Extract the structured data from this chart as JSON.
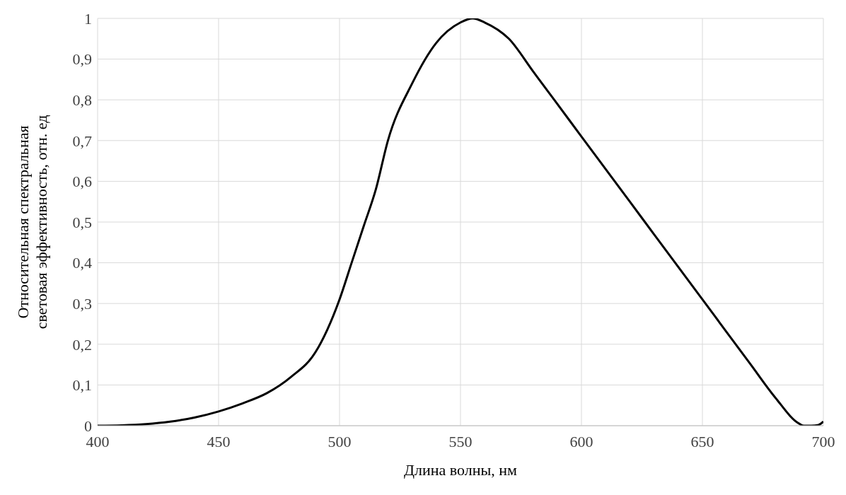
{
  "chart_data": {
    "type": "line",
    "xlabel": "Длина волны, нм",
    "ylabel": "Относительная спектральная световая эффективность, отн. ед",
    "x": [
      400,
      410,
      420,
      430,
      440,
      450,
      460,
      470,
      480,
      490,
      500,
      505,
      510,
      515,
      520,
      530,
      540,
      550,
      555,
      560,
      570,
      580,
      590,
      600,
      610,
      620,
      630,
      640,
      650,
      660,
      670,
      680,
      690,
      692,
      695,
      698,
      700
    ],
    "series": [
      {
        "color": "#000000",
        "values": [
          0,
          0.001,
          0.004,
          0.01,
          0.02,
          0.035,
          0.055,
          0.08,
          0.12,
          0.18,
          0.31,
          0.4,
          0.49,
          0.58,
          0.7,
          0.84,
          0.94,
          0.99,
          1,
          0.99,
          0.95,
          0.87,
          0.79,
          0.71,
          0.63,
          0.55,
          0.47,
          0.39,
          0.31,
          0.23,
          0.15,
          0.07,
          0.005,
          0,
          0,
          0.002,
          0.01
        ]
      }
    ],
    "xlim": [
      400,
      700
    ],
    "xticks": [
      400,
      450,
      500,
      550,
      600,
      650,
      700
    ],
    "ylim": [
      0,
      1
    ],
    "yticks": [
      0,
      {
        "value": 0.1,
        "label": "0,1"
      },
      {
        "value": 0.2,
        "label": "0,2"
      },
      {
        "value": 0.3,
        "label": "0,3"
      },
      {
        "value": 0.4,
        "label": "0,4"
      },
      {
        "value": 0.5,
        "label": "0,5"
      },
      {
        "value": 0.6,
        "label": "0,6"
      },
      {
        "value": 0.7,
        "label": "0,7"
      },
      {
        "value": 0.8,
        "label": "0,8"
      },
      {
        "value": 0.9,
        "label": "0,9"
      },
      1
    ],
    "grid": true,
    "marker": "none",
    "line_style": "solid",
    "legend": false
  }
}
